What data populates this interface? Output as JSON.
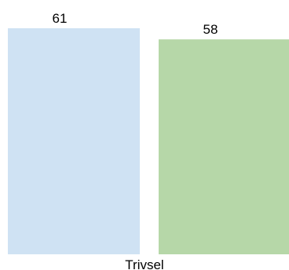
{
  "chart_data": {
    "type": "bar",
    "categories": [
      "Trivsel"
    ],
    "series": [
      {
        "values": [
          61
        ],
        "color": "#cfe2f3"
      },
      {
        "values": [
          58
        ],
        "color": "#b6d7a8"
      }
    ],
    "data_labels": [
      "61",
      "58"
    ],
    "category_label": "Trivsel",
    "title": "",
    "xlabel": "",
    "ylabel": "",
    "ylim": [
      0,
      61
    ],
    "grid": false,
    "legend": "none"
  }
}
